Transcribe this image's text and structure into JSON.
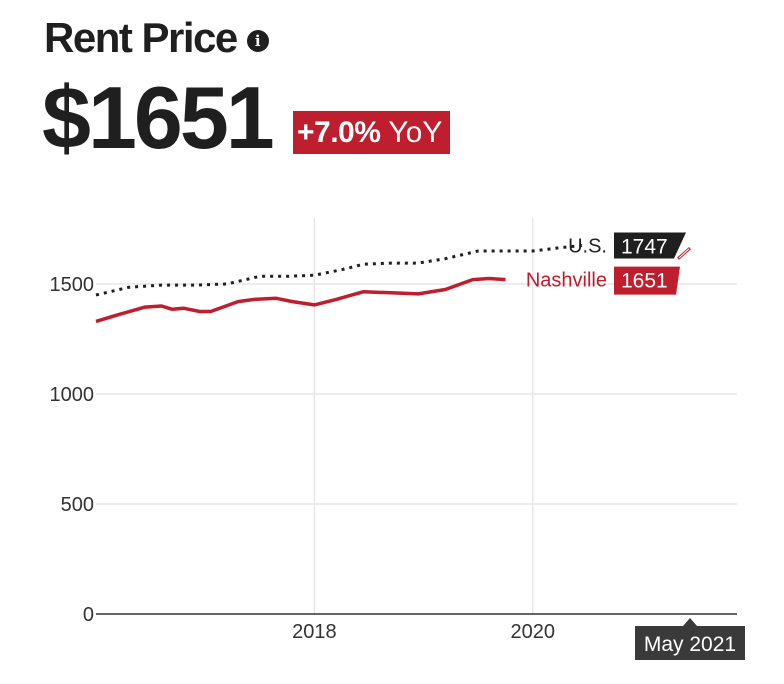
{
  "header": {
    "title": "Rent Price",
    "info_glyph": "i",
    "price": "$1651",
    "yoy_change": "+7.0%",
    "yoy_label": "YoY"
  },
  "colors": {
    "nashville": "#be1e2d",
    "us": "#1f1f1f",
    "grid": "#e6e6e6",
    "tooltip_bg": "#3a3a3a"
  },
  "chart_data": {
    "type": "line",
    "title": "Rent Price",
    "xlabel": "",
    "ylabel": "",
    "xlim": [
      2016.0,
      2021.87
    ],
    "ylim": [
      0,
      1800
    ],
    "x_ticks": [
      2018,
      2020
    ],
    "x_tick_labels": [
      "2018",
      "2020"
    ],
    "y_ticks": [
      0,
      500,
      1000,
      1500
    ],
    "y_tick_labels": [
      "0",
      "500",
      "1000",
      "1500"
    ],
    "grid": true,
    "series": [
      {
        "name": "U.S.",
        "label_value": "1747",
        "style": "dotted",
        "x": [
          2016.0,
          2016.3,
          2016.6,
          2016.9,
          2017.2,
          2017.5,
          2017.75,
          2018.0,
          2018.25,
          2018.45,
          2018.7,
          2018.95,
          2019.2,
          2019.5,
          2019.75,
          2020.0,
          2020.25,
          2020.45
        ],
        "values": [
          1450,
          1485,
          1495,
          1495,
          1500,
          1535,
          1535,
          1540,
          1565,
          1590,
          1595,
          1595,
          1615,
          1650,
          1650,
          1650,
          1665,
          1675
        ]
      },
      {
        "name": "Nashville",
        "label_value": "1651",
        "style": "solid",
        "x": [
          2016.0,
          2016.2,
          2016.45,
          2016.6,
          2016.7,
          2016.8,
          2016.95,
          2017.05,
          2017.3,
          2017.45,
          2017.65,
          2017.8,
          2018.0,
          2018.2,
          2018.45,
          2018.7,
          2018.95,
          2019.2,
          2019.45,
          2019.6,
          2019.75
        ],
        "values": [
          1330,
          1360,
          1395,
          1400,
          1385,
          1390,
          1375,
          1375,
          1420,
          1430,
          1435,
          1420,
          1405,
          1430,
          1465,
          1460,
          1455,
          1475,
          1520,
          1525,
          1520
        ]
      }
    ],
    "tooltip": "May 2021"
  }
}
